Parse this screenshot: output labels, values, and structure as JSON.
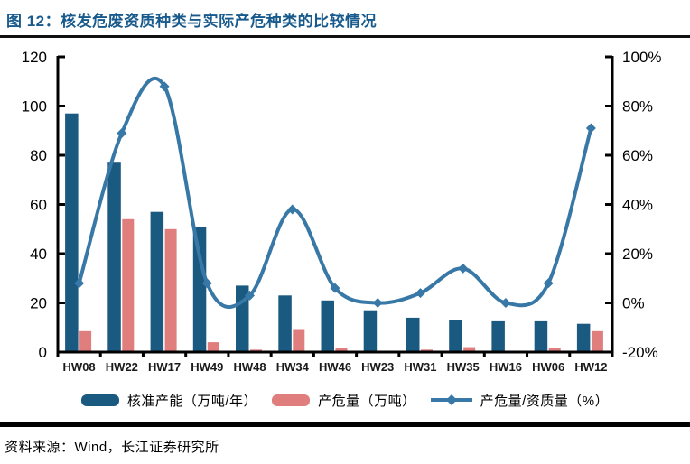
{
  "header": {
    "title": "图 12：核发危废资质种类与实际产危种类的比较情况"
  },
  "chart_data": {
    "type": "bar+line",
    "title": "核发危废资质种类与实际产危种类的比较情况",
    "categories": [
      "HW08",
      "HW22",
      "HW17",
      "HW49",
      "HW48",
      "HW34",
      "HW46",
      "HW23",
      "HW31",
      "HW35",
      "HW16",
      "HW06",
      "HW12"
    ],
    "series": [
      {
        "name": "核准产能（万吨/年）",
        "type": "bar",
        "axis": "left",
        "color": "#1A5A80",
        "values": [
          97,
          77,
          57,
          51,
          27,
          23,
          21,
          17,
          14,
          13,
          12.5,
          12.5,
          11.5
        ]
      },
      {
        "name": "产危量（万吨）",
        "type": "bar",
        "axis": "left",
        "color": "#E07D7D",
        "values": [
          8.5,
          54,
          50,
          4,
          1,
          9,
          1.5,
          0.3,
          1,
          2,
          0.3,
          1.5,
          8.5
        ]
      },
      {
        "name": "产危量/资质量（%）",
        "type": "line",
        "axis": "right",
        "color": "#3878A6",
        "values": [
          8,
          69,
          88,
          8,
          3,
          38,
          6,
          0,
          4,
          14,
          0,
          8,
          71
        ]
      }
    ],
    "left_axis": {
      "min": 0,
      "max": 120,
      "step": 20,
      "tick_labels": [
        "0",
        "20",
        "40",
        "60",
        "80",
        "100",
        "120"
      ]
    },
    "right_axis": {
      "min": -20,
      "max": 100,
      "step": 20,
      "tick_labels": [
        "-20%",
        "0%",
        "20%",
        "40%",
        "60%",
        "80%",
        "100%"
      ]
    },
    "grid": false,
    "legend_position": "bottom",
    "axis_color": "#000000",
    "tick_label_color": "#000000",
    "x_label_color": "#1a1a1a"
  },
  "footer": {
    "source": "资料来源：Wind，长江证券研究所"
  }
}
